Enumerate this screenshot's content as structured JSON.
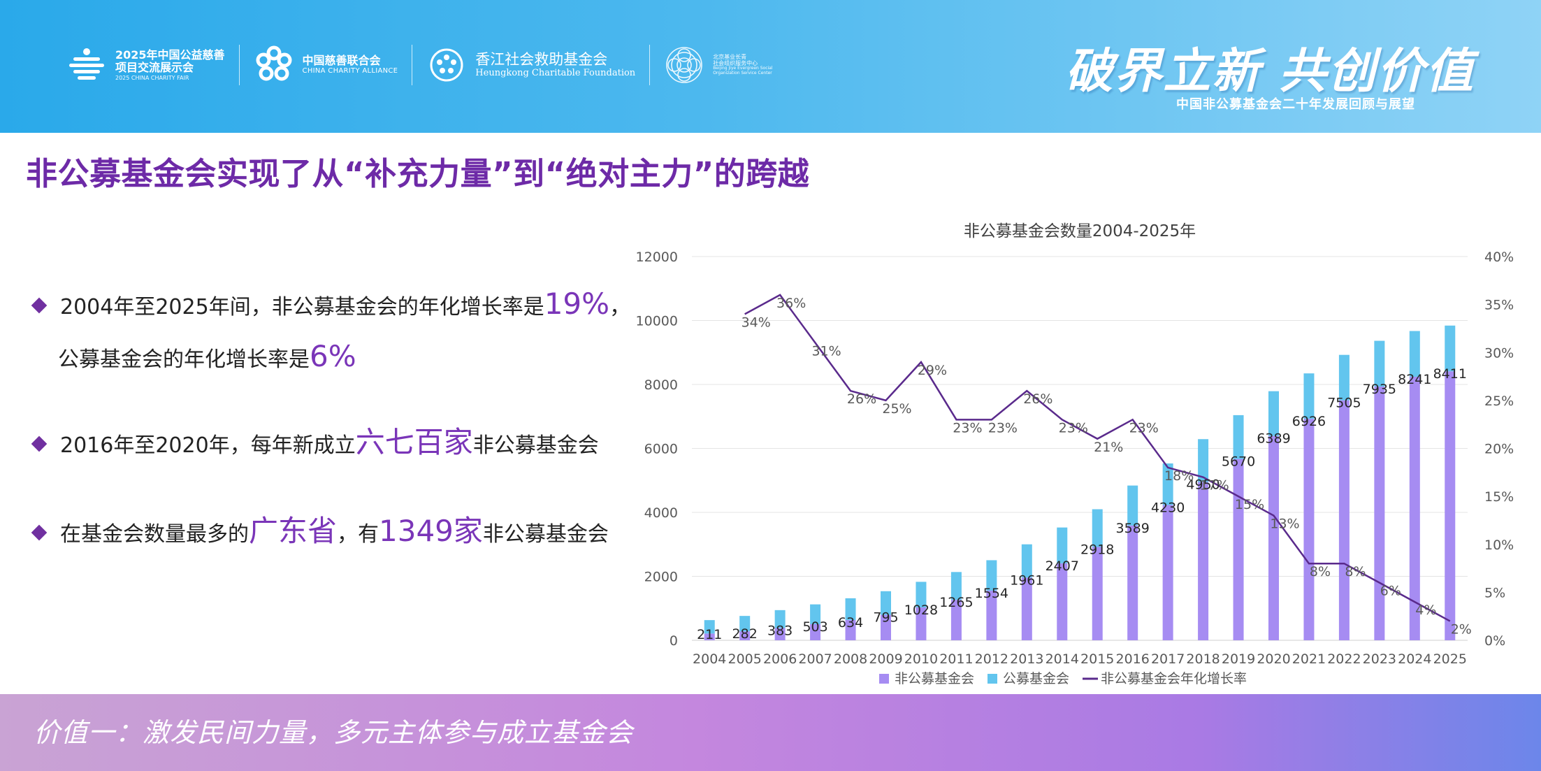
{
  "header": {
    "logos": [
      {
        "main": "2025年中国公益慈善",
        "main2": "项目交流展示会",
        "sub": "2025 CHINA CHARITY FAIR"
      },
      {
        "main": "中国慈善联合会",
        "sub": "CHINA CHARITY ALLIANCE"
      },
      {
        "main": "香江社会救助基金会",
        "sub": "Heungkong Charitable Foundation"
      },
      {
        "main": "北京基业长青",
        "main2": "社会组织服务中心",
        "sub": "Beijing Jiye Evergreen Social Organization Service Center"
      }
    ],
    "slogan": "破界立新 共创价值",
    "slogan_sub": "中国非公募基金会二十年发展回顾与展望"
  },
  "page_title": "非公募基金会实现了从“补充力量”到“绝对主力”的跨越",
  "bullets": [
    {
      "pre": "2004年至2025年间，非公募基金会的年化增长率是",
      "hl": "19%",
      "post": "，",
      "pre2": "公募基金会的年化增长率是",
      "hl2": "6%"
    },
    {
      "pre": "2016年至2020年，每年新成立",
      "hl": "六七百家",
      "post": "非公募基金会"
    },
    {
      "pre": "在基金会数量最多的",
      "hl": "广东省",
      "mid": "，有",
      "hl2": "1349家",
      "post": "非公募基金会"
    }
  ],
  "footer_text": "价值一：激发民间力量，多元主体参与成立基金会",
  "chart_data": {
    "type": "bar",
    "stacked": true,
    "title": "非公募基金会数量2004-2025年",
    "categories": [
      "2004",
      "2005",
      "2006",
      "2007",
      "2008",
      "2009",
      "2010",
      "2011",
      "2012",
      "2013",
      "2014",
      "2015",
      "2016",
      "2017",
      "2018",
      "2019",
      "2020",
      "2021",
      "2022",
      "2023",
      "2024",
      "2025"
    ],
    "series": [
      {
        "name": "非公募基金会",
        "type": "bar",
        "axis": "left",
        "color": "#a68cf2",
        "values": [
          211,
          282,
          383,
          503,
          634,
          795,
          1028,
          1265,
          1554,
          1961,
          2407,
          2918,
          3589,
          4230,
          4950,
          5670,
          6389,
          6926,
          7505,
          7935,
          8241,
          8411
        ]
      },
      {
        "name": "公募基金会",
        "type": "bar",
        "axis": "left",
        "color": "#62c5ee",
        "values": [
          420,
          480,
          560,
          620,
          680,
          740,
          800,
          870,
          950,
          1040,
          1120,
          1180,
          1250,
          1300,
          1340,
          1370,
          1400,
          1420,
          1420,
          1430,
          1430,
          1430
        ]
      },
      {
        "name": "非公募基金会年化增长率",
        "type": "line",
        "axis": "right",
        "color": "#5a2a8c",
        "values": [
          null,
          34,
          36,
          31,
          26,
          25,
          29,
          23,
          23,
          26,
          23,
          21,
          23,
          18,
          17,
          15,
          13,
          8,
          8,
          6,
          4,
          2
        ]
      }
    ],
    "y_left": {
      "min": 0,
      "max": 12000,
      "ticks": [
        "0",
        "2000",
        "4000",
        "6000",
        "8000",
        "10000",
        "12000"
      ]
    },
    "y_right": {
      "min": 0,
      "max": 40,
      "ticks": [
        "0%",
        "5%",
        "10%",
        "15%",
        "20%",
        "25%",
        "30%",
        "35%",
        "40%"
      ]
    },
    "legend": [
      "非公募基金会",
      "公募基金会",
      "非公募基金会年化增长率"
    ],
    "legend_position": "bottom",
    "grid": true
  }
}
